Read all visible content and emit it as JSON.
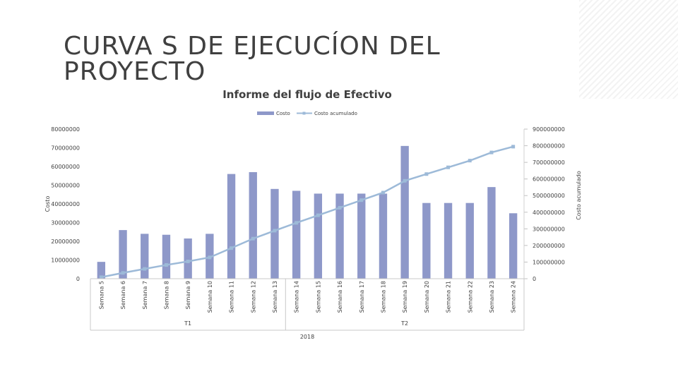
{
  "slide": {
    "title": "CURVA S DE EJECUCÍON DEL PROYECTO"
  },
  "chart_data": {
    "type": "bar",
    "title": "Informe del flujo de Efectivo",
    "ylabel": "Costo",
    "y2label": "Costo acumulado",
    "categories": [
      "Semana 5",
      "Semana 6",
      "Semana 7",
      "Semana 8",
      "Semana 9",
      "Semana 10",
      "Semana 11",
      "Semana 12",
      "Semana 13",
      "Semana 14",
      "Semana 15",
      "Semana 16",
      "Semana 17",
      "Semana 18",
      "Semana 19",
      "Semana 20",
      "Semana 21",
      "Semana 22",
      "Semana 23",
      "Semana 24"
    ],
    "groups": [
      {
        "label": "T1",
        "categories": [
          "Semana 5",
          "Semana 6",
          "Semana 7",
          "Semana 8",
          "Semana 9",
          "Semana 10",
          "Semana 11",
          "Semana 12",
          "Semana 13"
        ]
      },
      {
        "label": "T2",
        "categories": [
          "Semana 14",
          "Semana 15",
          "Semana 16",
          "Semana 17",
          "Semana 18",
          "Semana 19",
          "Semana 20",
          "Semana 21",
          "Semana 22",
          "Semana 23",
          "Semana 24"
        ]
      }
    ],
    "year_label": "2018",
    "series": [
      {
        "name": "Costo",
        "type": "bar",
        "axis": "left",
        "color": "#8e98c9",
        "values": [
          9000000,
          26000000,
          24000000,
          23500000,
          21500000,
          24000000,
          56000000,
          57000000,
          48000000,
          47000000,
          45500000,
          45500000,
          45500000,
          45500000,
          71000000,
          40500000,
          40500000,
          40500000,
          49000000,
          35000000
        ]
      },
      {
        "name": "Costo acumulado",
        "type": "line",
        "axis": "right",
        "color": "#9dbad8",
        "values": [
          9000000,
          35000000,
          59000000,
          82500000,
          104000000,
          128000000,
          184000000,
          241000000,
          289000000,
          336000000,
          381500000,
          427000000,
          472500000,
          518000000,
          589000000,
          629500000,
          670000000,
          710500000,
          759500000,
          794500000
        ]
      }
    ],
    "ylim": [
      0,
      80000000
    ],
    "y_ticks": [
      "0",
      "10000000",
      "20000000",
      "30000000",
      "40000000",
      "50000000",
      "60000000",
      "70000000",
      "80000000"
    ],
    "y2lim": [
      0,
      900000000
    ],
    "y2_ticks": [
      "0",
      "100000000",
      "200000000",
      "300000000",
      "400000000",
      "500000000",
      "600000000",
      "700000000",
      "800000000",
      "900000000"
    ],
    "legend_position": "top",
    "grid": false
  }
}
